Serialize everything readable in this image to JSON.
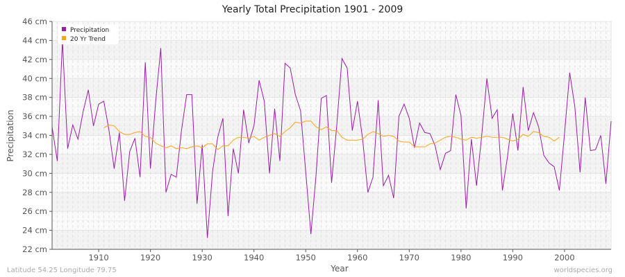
{
  "chart_data": {
    "type": "line",
    "title": "Yearly Total Precipitation 1901 - 2009",
    "xlabel": "Year",
    "ylabel": "Precipitation",
    "y_unit": "cm",
    "xlim": [
      1901,
      2009
    ],
    "ylim": [
      22,
      46
    ],
    "x_ticks": [
      1910,
      1920,
      1930,
      1940,
      1950,
      1960,
      1970,
      1980,
      1990,
      2000
    ],
    "y_ticks": [
      "22 cm",
      "24 cm",
      "26 cm",
      "28 cm",
      "30 cm",
      "32 cm",
      "34 cm",
      "36 cm",
      "38 cm",
      "40 cm",
      "42 cm",
      "44 cm",
      "46 cm"
    ],
    "grid": true,
    "legend_position": "top-left",
    "series": [
      {
        "name": "Precipitation",
        "color": "#9c1aa8",
        "start_year": 1901,
        "values": [
          34.9,
          31.3,
          44.0,
          32.6,
          35.1,
          33.6,
          36.5,
          38.8,
          35.0,
          37.3,
          37.6,
          34.5,
          30.5,
          34.3,
          27.1,
          32.3,
          33.7,
          29.6,
          41.7,
          30.5,
          37.5,
          43.2,
          28.0,
          29.9,
          29.6,
          34.5,
          38.3,
          38.3,
          26.8,
          33.0,
          23.2,
          30.2,
          33.8,
          35.8,
          25.5,
          32.6,
          30.0,
          36.7,
          33.2,
          35.0,
          39.8,
          37.6,
          30.0,
          36.8,
          31.3,
          41.6,
          41.1,
          38.3,
          36.6,
          30.2,
          23.6,
          29.8,
          37.9,
          38.2,
          29.0,
          35.1,
          42.1,
          41.1,
          34.5,
          37.6,
          33.6,
          28.0,
          29.6,
          37.7,
          28.7,
          29.8,
          27.4,
          36.0,
          37.3,
          35.8,
          32.7,
          35.3,
          34.3,
          34.2,
          32.9,
          30.4,
          32.1,
          32.4,
          38.3,
          36.1,
          26.3,
          33.6,
          28.7,
          34.0,
          40.0,
          35.8,
          36.7,
          28.2,
          31.8,
          36.3,
          32.4,
          39.1,
          34.5,
          36.4,
          34.9,
          31.9,
          31.1,
          30.7,
          28.2,
          34.2,
          40.6,
          37.0,
          30.1,
          38.0,
          32.4,
          32.5,
          34.0,
          28.9,
          35.5
        ]
      },
      {
        "name": "20 Yr Trend",
        "color": "#ffa31a",
        "start_year": 1911,
        "values": [
          34.8,
          35.1,
          35.0,
          34.4,
          34.1,
          34.1,
          34.3,
          34.4,
          33.9,
          33.8,
          33.2,
          32.9,
          32.7,
          32.9,
          32.6,
          32.7,
          32.6,
          32.8,
          32.9,
          32.7,
          33.1,
          33.1,
          32.5,
          32.9,
          32.9,
          33.5,
          33.8,
          33.8,
          33.7,
          33.9,
          33.5,
          33.8,
          34.0,
          34.2,
          33.9,
          34.4,
          34.8,
          35.4,
          35.3,
          35.5,
          35.5,
          34.9,
          34.6,
          34.9,
          34.5,
          34.5,
          33.8,
          33.5,
          33.5,
          33.5,
          33.6,
          34.1,
          34.4,
          34.2,
          33.9,
          34.0,
          33.9,
          33.4,
          33.3,
          33.3,
          32.8,
          32.8,
          32.8,
          33.1,
          33.2,
          33.5,
          33.8,
          33.9,
          33.8,
          33.6,
          33.5,
          33.8,
          33.7,
          33.8,
          33.9,
          33.8,
          33.8,
          33.8,
          33.6,
          33.4,
          33.6,
          34.1,
          33.9,
          34.4,
          34.3,
          33.9,
          33.8,
          33.4,
          33.8
        ]
      }
    ]
  },
  "footer": {
    "location": "Latitude 54.25 Longitude 79.75",
    "credit": "worldspecies.org"
  }
}
